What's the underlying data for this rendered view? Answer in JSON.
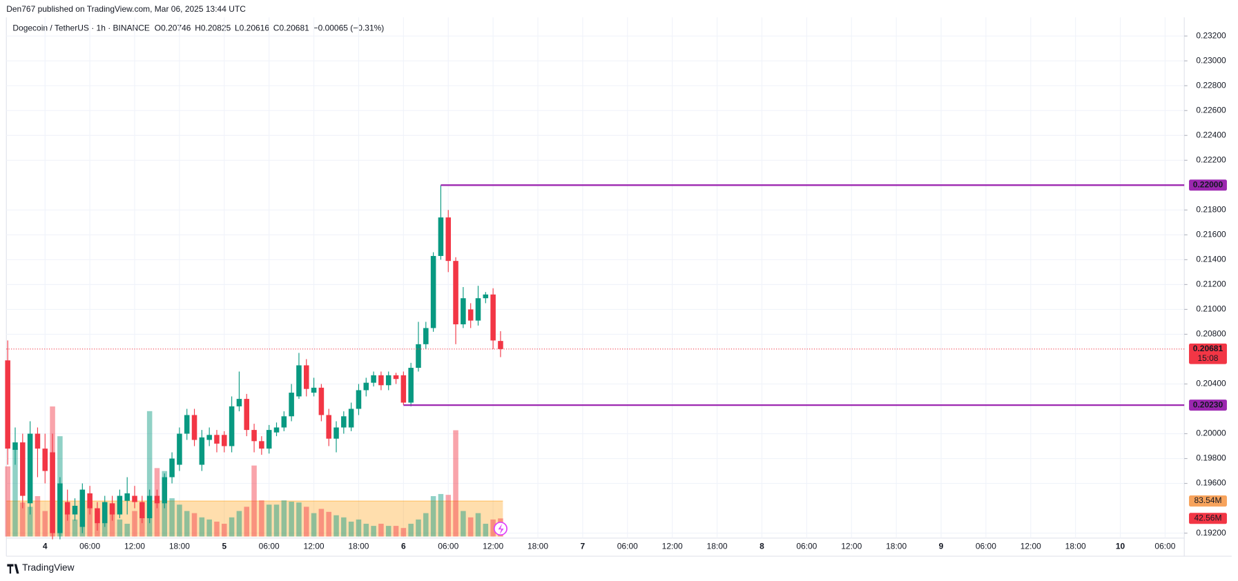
{
  "chart_data": {
    "type": "candlestick",
    "publisher": "Den767 published on TradingView.com, Mar 06, 2025 13:44 UTC",
    "title": "Dogecoin / TetherUS · 1h · BINANCE",
    "legend": {
      "o": "O",
      "h": "H",
      "l": "L",
      "c": "C",
      "change": "−0.00065 (−0.31%)"
    },
    "up_color": "#089981",
    "down_color": "#f23645",
    "open": [
      0.2059,
      0.1987,
      0.1993,
      0.1944,
      0.2,
      0.1988,
      0.1985,
      0.192,
      0.1945,
      0.1935,
      0.1925,
      0.1952,
      0.194,
      0.1928,
      0.1944,
      0.1935,
      0.1946,
      0.195,
      0.1945,
      0.1932,
      0.195,
      0.1944,
      0.1965,
      0.1975,
      0.2,
      0.2015,
      0.1975,
      0.1995,
      0.1999,
      0.1999,
      0.199,
      0.2022,
      0.2028,
      0.2003,
      0.1994,
      0.1988,
      0.2001,
      0.2005,
      0.2014,
      0.203,
      0.2055,
      0.2033,
      0.2037,
      0.2015,
      0.1996,
      0.2005,
      0.2005,
      0.202,
      0.2035,
      0.2041,
      0.2047,
      0.2039,
      0.2047,
      0.2047,
      0.2025,
      0.2053,
      0.2072,
      0.2085,
      0.2143,
      0.2174,
      0.2139,
      0.2088,
      0.21,
      0.2091,
      0.2109,
      0.2112,
      0.20746
    ],
    "high": [
      0.2075,
      0.2005,
      0.2,
      0.201,
      0.2005,
      0.2,
      0.2,
      0.1965,
      0.1955,
      0.1948,
      0.196,
      0.1958,
      0.1945,
      0.195,
      0.195,
      0.1955,
      0.1965,
      0.1958,
      0.195,
      0.1955,
      0.1955,
      0.1968,
      0.1985,
      0.2005,
      0.202,
      0.202,
      0.2003,
      0.2005,
      0.2003,
      0.2002,
      0.203,
      0.205,
      0.2032,
      0.2008,
      0.1998,
      0.2007,
      0.2009,
      0.2018,
      0.204,
      0.2065,
      0.206,
      0.2045,
      0.204,
      0.202,
      0.201,
      0.2018,
      0.2025,
      0.204,
      0.2045,
      0.205,
      0.205,
      0.205,
      0.2049,
      0.205,
      0.2057,
      0.209,
      0.209,
      0.2146,
      0.22,
      0.218,
      0.2142,
      0.2118,
      0.2105,
      0.2119,
      0.2114,
      0.2117,
      0.20825
    ],
    "low": [
      0.1975,
      0.1975,
      0.194,
      0.1935,
      0.1965,
      0.196,
      0.1915,
      0.1915,
      0.193,
      0.193,
      0.192,
      0.1935,
      0.1922,
      0.1925,
      0.193,
      0.1932,
      0.1935,
      0.194,
      0.1928,
      0.1928,
      0.194,
      0.194,
      0.196,
      0.197,
      0.1995,
      0.199,
      0.197,
      0.199,
      0.1985,
      0.1985,
      0.1985,
      0.2018,
      0.1998,
      0.1985,
      0.1983,
      0.1984,
      0.1998,
      0.2002,
      0.201,
      0.2028,
      0.203,
      0.203,
      0.201,
      0.199,
      0.1985,
      0.2,
      0.2002,
      0.2015,
      0.203,
      0.2038,
      0.2035,
      0.2035,
      0.204,
      0.2023,
      0.2022,
      0.205,
      0.2068,
      0.2082,
      0.214,
      0.213,
      0.2072,
      0.2085,
      0.2085,
      0.2087,
      0.2105,
      0.2068,
      0.20616
    ],
    "close": [
      0.1988,
      0.1993,
      0.195,
      0.2,
      0.1988,
      0.197,
      0.192,
      0.196,
      0.1935,
      0.1942,
      0.1955,
      0.194,
      0.1928,
      0.1945,
      0.1935,
      0.195,
      0.1952,
      0.1945,
      0.1932,
      0.195,
      0.1944,
      0.1965,
      0.198,
      0.2,
      0.2015,
      0.1995,
      0.1997,
      0.1999,
      0.1992,
      0.199,
      0.2022,
      0.2028,
      0.2003,
      0.1994,
      0.1988,
      0.2003,
      0.2005,
      0.2014,
      0.2033,
      0.2055,
      0.2036,
      0.2037,
      0.2015,
      0.1996,
      0.2005,
      0.2014,
      0.202,
      0.2035,
      0.2041,
      0.2047,
      0.2039,
      0.2047,
      0.2044,
      0.2025,
      0.2053,
      0.2072,
      0.2085,
      0.2143,
      0.2174,
      0.2139,
      0.2088,
      0.2109,
      0.2091,
      0.2109,
      0.2112,
      0.2075,
      0.20681
    ],
    "volume": [
      165,
      208,
      80,
      70,
      95,
      60,
      306,
      236,
      55,
      40,
      65,
      85,
      60,
      50,
      75,
      40,
      30,
      60,
      45,
      295,
      161,
      154,
      90,
      75,
      60,
      55,
      45,
      40,
      35,
      30,
      45,
      60,
      70,
      167,
      85,
      75,
      75,
      85,
      82,
      80,
      70,
      55,
      65,
      58,
      50,
      45,
      35,
      40,
      30,
      25,
      30,
      25,
      25,
      20,
      30,
      40,
      55,
      95,
      100,
      98,
      250,
      60,
      45,
      55,
      30,
      40,
      42.56
    ],
    "volume_ma": {
      "value": 83.54,
      "label": "83.54M"
    },
    "volume_last_label": "42.56M",
    "countdown": "15:08",
    "levels": [
      {
        "value": 0.22,
        "label": "0.22000",
        "color": "#9c27b0"
      },
      {
        "value": 0.2023,
        "label": "0.20230",
        "color": "#9c27b0"
      }
    ],
    "ylim": [
      0.1916,
      0.2335
    ],
    "yticks": [
      {
        "value": 0.192,
        "label": "0.19200"
      },
      {
        "value": 0.196,
        "label": "0.19600"
      },
      {
        "value": 0.198,
        "label": "0.19800"
      },
      {
        "value": 0.2,
        "label": "0.20000"
      },
      {
        "value": 0.204,
        "label": "0.20400"
      },
      {
        "value": 0.208,
        "label": "0.20800"
      },
      {
        "value": 0.21,
        "label": "0.21000"
      },
      {
        "value": 0.212,
        "label": "0.21200"
      },
      {
        "value": 0.214,
        "label": "0.21400"
      },
      {
        "value": 0.216,
        "label": "0.21600"
      },
      {
        "value": 0.218,
        "label": "0.21800"
      },
      {
        "value": 0.222,
        "label": "0.22200"
      },
      {
        "value": 0.224,
        "label": "0.22400"
      },
      {
        "value": 0.226,
        "label": "0.22600"
      },
      {
        "value": 0.228,
        "label": "0.22800"
      },
      {
        "value": 0.23,
        "label": "0.23000"
      },
      {
        "value": 0.232,
        "label": "0.23200"
      }
    ],
    "xtick_labels": [
      "4",
      "06:00",
      "12:00",
      "18:00",
      "5",
      "06:00",
      "12:00",
      "18:00",
      "6",
      "06:00",
      "12:00",
      "18:00",
      "7",
      "06:00",
      "12:00",
      "18:00",
      "8",
      "06:00",
      "12:00",
      "18:00",
      "9",
      "06:00",
      "12:00",
      "18:00",
      "10",
      "06:00"
    ],
    "grid": true,
    "brand": "TradingView"
  }
}
